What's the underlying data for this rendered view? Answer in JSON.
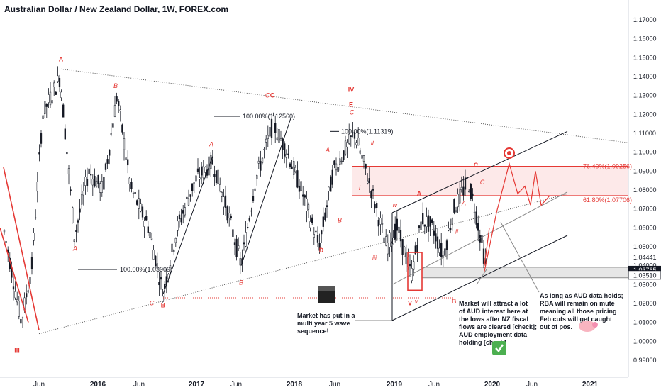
{
  "chart_data": {
    "type": "candlestick",
    "title": "Australian Dollar / New Zealand Dollar, 1W, FOREX.com",
    "ylim": [
      0.982,
      1.179
    ],
    "y_ticks": [
      "1.17000",
      "1.16000",
      "1.15000",
      "1.14000",
      "1.13000",
      "1.12000",
      "1.11000",
      "1.10000",
      "1.09000",
      "1.08000",
      "1.07000",
      "1.06000",
      "1.05000",
      "1.04000",
      "1.03000",
      "1.02000",
      "1.01000",
      "1.00000",
      "0.99000"
    ],
    "y_tick_values": [
      1.17,
      1.16,
      1.15,
      1.14,
      1.13,
      1.12,
      1.11,
      1.1,
      1.09,
      1.08,
      1.07,
      1.06,
      1.05,
      1.04,
      1.03,
      1.02,
      1.01,
      1.0,
      0.99
    ],
    "x_ticks": [
      "Jun",
      "2016",
      "Jun",
      "2017",
      "Jun",
      "2018",
      "Jun",
      "2019",
      "Jun",
      "2020",
      "Jun",
      "2021"
    ],
    "price_labels": [
      {
        "text": "1.04441",
        "value": 1.04441,
        "style": "plain"
      },
      {
        "text": "1.03765",
        "value": 1.03765,
        "style": "dark"
      },
      {
        "text": "1.03510",
        "value": 1.0351,
        "style": "box"
      }
    ],
    "fib_labels": [
      {
        "text": "76.40%(1.09256)",
        "value": 1.09256
      },
      {
        "text": "61.80%(1.07706)",
        "value": 1.07706
      }
    ],
    "measure_labels": [
      "100.00%(1.03909)",
      "100.00%(1.12560)",
      "100.00%(1.11319)"
    ],
    "wave_labels": {
      "red_bold": [
        "A",
        "III",
        "B",
        "C",
        "IV",
        "E",
        "D",
        "C",
        "A",
        "B",
        "V",
        "C"
      ],
      "red_italic": [
        "B",
        "A",
        "A",
        "B",
        "C",
        "A",
        "C",
        "i",
        "B",
        "iii",
        "ii",
        "iv",
        "v",
        "B",
        "A",
        "C",
        "ii"
      ],
      "notes_red": [
        "A",
        "B",
        "C",
        "C",
        "IV",
        "E",
        "D",
        "B",
        "V",
        "B",
        "C"
      ]
    },
    "annotations": [
      "Market has put in a multi year 5 wave sequence!",
      "Market will attract a lot of AUD interest here at the lows after NZ fiscal flows are cleared [check]; AUD employment data holding [check]",
      "As long as AUD data holds; RBA will remain on mute meaning all those pricing Feb cuts will get caught out of pos."
    ],
    "colors": {
      "candle": "#131722",
      "accent": "#e53935",
      "fib_fill": "#fde9e9",
      "label_dark": "#131722",
      "grid": "#e0e3eb"
    }
  }
}
